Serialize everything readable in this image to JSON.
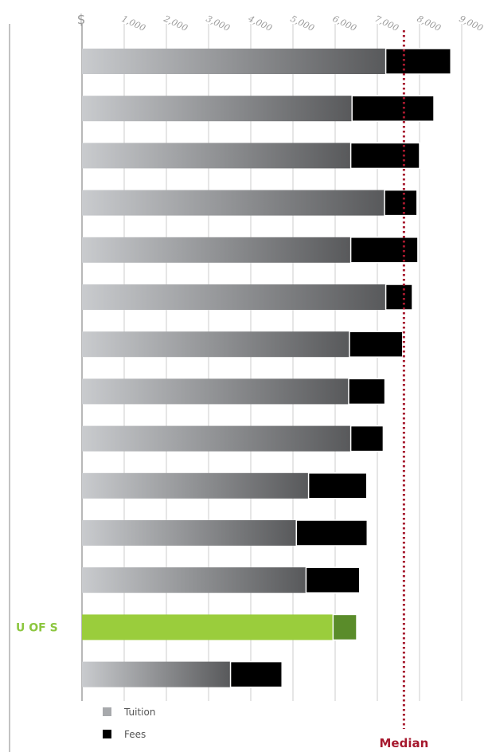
{
  "chart_data": {
    "type": "bar",
    "orientation": "horizontal",
    "stacked": true,
    "currency_symbol": "$",
    "x_ticks": [
      "1,000",
      "2,000",
      "3,000",
      "4,000",
      "5,000",
      "6,000",
      "7,000",
      "8,000",
      "9,000"
    ],
    "x_tick_values": [
      1000,
      2000,
      3000,
      4000,
      5000,
      6000,
      7000,
      8000,
      9000
    ],
    "xlim": [
      0,
      9000
    ],
    "grid": true,
    "legend_position": "bottom-left",
    "categories": [
      "",
      "",
      "",
      "",
      "",
      "",
      "",
      "",
      "",
      "",
      "",
      "",
      "U OF S",
      ""
    ],
    "highlight_label": "U OF S",
    "highlight_index": 12,
    "series": [
      {
        "name": "Tuition",
        "values": [
          7200,
          6400,
          6370,
          7170,
          6370,
          7200,
          6340,
          6320,
          6370,
          5370,
          5080,
          5310,
          5950,
          3520
        ]
      },
      {
        "name": "Fees",
        "values": [
          1540,
          1940,
          1630,
          770,
          1590,
          630,
          1260,
          860,
          770,
          1380,
          1680,
          1270,
          560,
          1220
        ]
      }
    ],
    "median": {
      "label": "Median",
      "value": 7630
    },
    "colors": {
      "tuition_gradient_start": "#c9cbce",
      "tuition_gradient_end": "#58595b",
      "fees": "#000000",
      "highlight_tuition": "#9acd3c",
      "highlight_fees": "#5a8c2a",
      "highlight_label": "#8cc63f",
      "median": "#a6192e",
      "legend_tuition": "#a7a9ac",
      "legend_fees": "#000000",
      "grid": "#cccccc",
      "axis": "#888888"
    }
  }
}
